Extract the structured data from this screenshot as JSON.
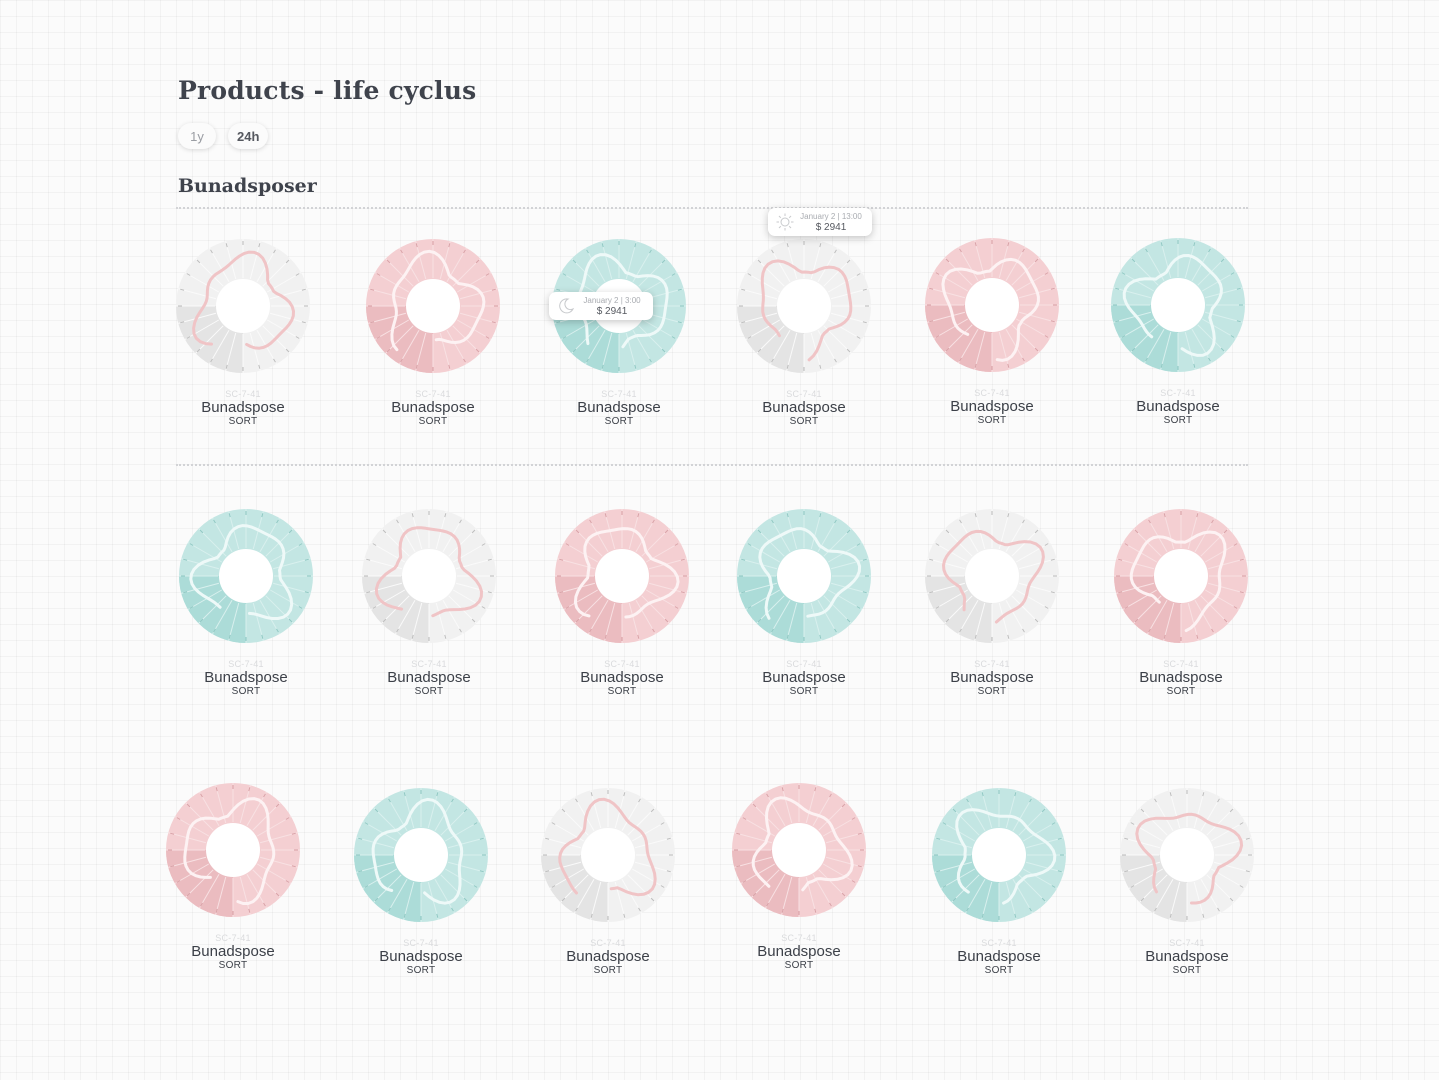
{
  "page": {
    "title": "Products - life cyclus"
  },
  "period_toggle": {
    "options": [
      "1y",
      "24h"
    ],
    "active": "24h"
  },
  "section": {
    "title": "Bunadsposer"
  },
  "themes": {
    "grey": {
      "light": "#f1f1f1",
      "dark": "#e4e4e4",
      "spoke": "#fafafa",
      "tick": "#bdbdbd",
      "curve": "#f0c4c6"
    },
    "pink": {
      "light": "#f4cfd2",
      "dark": "#ebbcc0",
      "spoke": "#f8e1e3",
      "tick": "#d9a2a7",
      "curve": "#fdf2f3"
    },
    "teal": {
      "light": "#c3e6e3",
      "dark": "#acdcd8",
      "spoke": "#d9f0ee",
      "tick": "#90c8c3",
      "curve": "#eef9f8"
    }
  },
  "products": [
    {
      "code": "SC-7-41",
      "name": "Bunadspose",
      "category": "SORT",
      "theme": "grey"
    },
    {
      "code": "SC-7-41",
      "name": "Bunadspose",
      "category": "SORT",
      "theme": "pink"
    },
    {
      "code": "SC-7-41",
      "name": "Bunadspose",
      "category": "SORT",
      "theme": "teal"
    },
    {
      "code": "SC-7-41",
      "name": "Bunadspose",
      "category": "SORT",
      "theme": "grey"
    },
    {
      "code": "SC-7-41",
      "name": "Bunadspose",
      "category": "SORT",
      "theme": "pink"
    },
    {
      "code": "SC-7-41",
      "name": "Bunadspose",
      "category": "SORT",
      "theme": "teal"
    },
    {
      "code": "SC-7-41",
      "name": "Bunadspose",
      "category": "SORT",
      "theme": "teal"
    },
    {
      "code": "SC-7-41",
      "name": "Bunadspose",
      "category": "SORT",
      "theme": "grey"
    },
    {
      "code": "SC-7-41",
      "name": "Bunadspose",
      "category": "SORT",
      "theme": "pink"
    },
    {
      "code": "SC-7-41",
      "name": "Bunadspose",
      "category": "SORT",
      "theme": "teal"
    },
    {
      "code": "SC-7-41",
      "name": "Bunadspose",
      "category": "SORT",
      "theme": "grey"
    },
    {
      "code": "SC-7-41",
      "name": "Bunadspose",
      "category": "SORT",
      "theme": "pink"
    },
    {
      "code": "SC-7-41",
      "name": "Bunadspose",
      "category": "SORT",
      "theme": "pink"
    },
    {
      "code": "SC-7-41",
      "name": "Bunadspose",
      "category": "SORT",
      "theme": "teal"
    },
    {
      "code": "SC-7-41",
      "name": "Bunadspose",
      "category": "SORT",
      "theme": "grey"
    },
    {
      "code": "SC-7-41",
      "name": "Bunadspose",
      "category": "SORT",
      "theme": "pink"
    },
    {
      "code": "SC-7-41",
      "name": "Bunadspose",
      "category": "SORT",
      "theme": "teal"
    },
    {
      "code": "SC-7-41",
      "name": "Bunadspose",
      "category": "SORT",
      "theme": "grey"
    }
  ],
  "tooltips": [
    {
      "product": 2,
      "icon": "moon-icon",
      "date": "January 2 | 3:00",
      "value": "$ 2941"
    },
    {
      "product": 3,
      "icon": "sun-icon",
      "date": "January 2 | 13:00",
      "value": "$ 2941"
    }
  ]
}
